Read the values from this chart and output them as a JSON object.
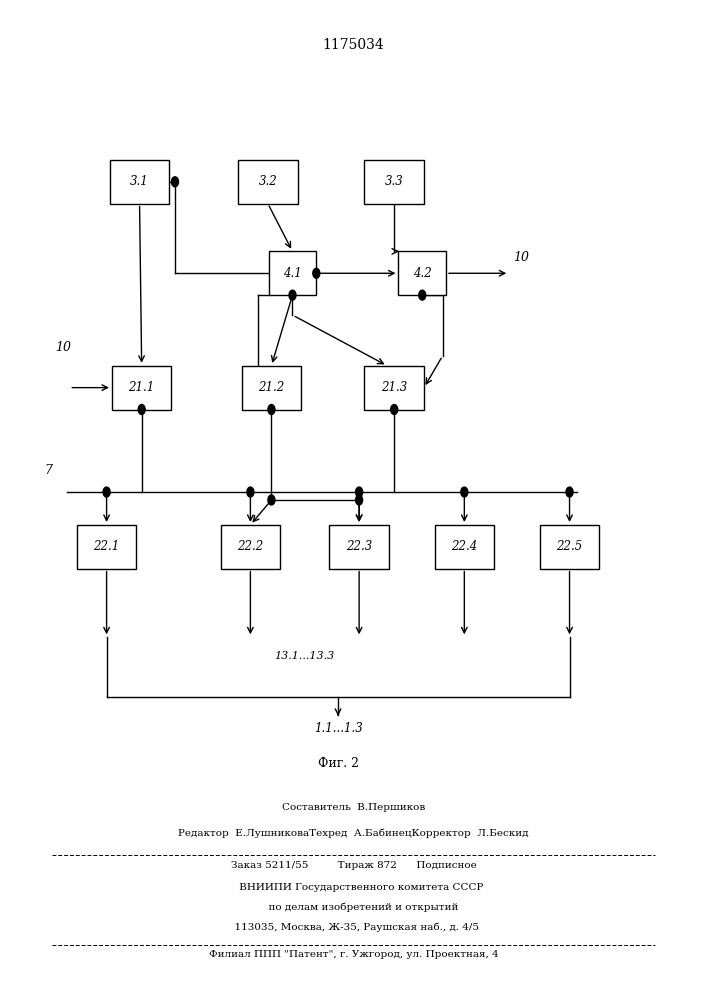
{
  "title": "1175034",
  "fig_label": "Фиг. 2",
  "boxes": {
    "3.1": [
      0.195,
      0.82,
      0.085,
      0.044
    ],
    "3.2": [
      0.378,
      0.82,
      0.085,
      0.044
    ],
    "3.3": [
      0.558,
      0.82,
      0.085,
      0.044
    ],
    "4.1": [
      0.413,
      0.728,
      0.068,
      0.044
    ],
    "4.2": [
      0.598,
      0.728,
      0.068,
      0.044
    ],
    "21.1": [
      0.198,
      0.613,
      0.085,
      0.044
    ],
    "21.2": [
      0.383,
      0.613,
      0.085,
      0.044
    ],
    "21.3": [
      0.558,
      0.613,
      0.085,
      0.044
    ],
    "22.1": [
      0.148,
      0.453,
      0.085,
      0.044
    ],
    "22.2": [
      0.353,
      0.453,
      0.085,
      0.044
    ],
    "22.3": [
      0.508,
      0.453,
      0.085,
      0.044
    ],
    "22.4": [
      0.658,
      0.453,
      0.085,
      0.044
    ],
    "22.5": [
      0.808,
      0.453,
      0.085,
      0.044
    ]
  },
  "footer_lines": [
    "Составитель  В.Першиков",
    "Редактор  Е.ЛушниковаТехред  А.БабинецКорректор  Л.Бескид",
    "Заказ 5211/55         Тираж 872      Подписное",
    "     ВНИИПИ Государственного комитета СССР",
    "      по делам изобретений и открытий",
    "  113035, Москва, Ж-35, Раушская наб., д. 4/5",
    "Филиал ППП \"Патент\", г. Ужгород, ул. Проектная, 4"
  ]
}
